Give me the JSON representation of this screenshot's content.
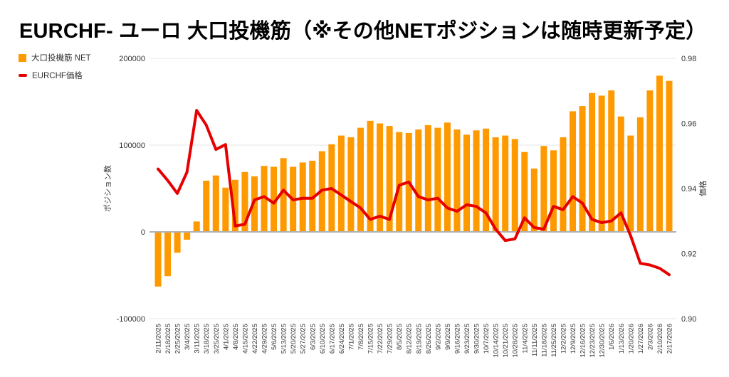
{
  "title": "EURCHF- ユーロ 大口投機筋（※その他NETポジションは随時更新予定）",
  "background": "#ffffff",
  "legend": [
    {
      "label": "大口投機筋 NET",
      "type": "bar",
      "color": "#ff9900"
    },
    {
      "label": "EURCHF価格",
      "type": "line",
      "color": "#e60000"
    }
  ],
  "chart_data": {
    "type": "combo-bar-line",
    "title": "EURCHF- ユーロ 大口投機筋（※その他NETポジションは随時更新予定）",
    "grid": true,
    "legend_position": "top-left",
    "categories": [
      "2/11/2025",
      "2/18/2025",
      "2/25/2025",
      "3/4/2025",
      "3/11/2025",
      "3/18/2025",
      "3/25/2025",
      "4/1/2025",
      "4/8/2025",
      "4/15/2025",
      "4/22/2025",
      "4/29/2025",
      "5/6/2025",
      "5/13/2025",
      "5/20/2025",
      "5/27/2025",
      "6/3/2025",
      "6/10/2025",
      "6/17/2025",
      "6/24/2025",
      "7/1/2025",
      "7/8/2025",
      "7/15/2025",
      "7/22/2025",
      "7/29/2025",
      "8/5/2025",
      "8/12/2025",
      "8/19/2025",
      "8/26/2025",
      "9/2/2025",
      "9/9/2025",
      "9/16/2025",
      "9/23/2025",
      "9/30/2025",
      "10/7/2025",
      "10/14/2025",
      "10/21/2025",
      "10/28/2025",
      "11/4/2025",
      "11/11/2025",
      "11/18/2025",
      "11/25/2025",
      "12/2/2025",
      "12/9/2025",
      "12/16/2025",
      "12/23/2025",
      "12/30/2025",
      "1/6/2026",
      "1/13/2026",
      "1/20/2026",
      "1/27/2026",
      "2/3/2026",
      "2/10/2026",
      "2/17/2026"
    ],
    "series": [
      {
        "name": "大口投機筋 NET",
        "type": "bar",
        "axis": "left",
        "color": "#ff9900",
        "values": [
          -63000,
          -51000,
          -24000,
          -9000,
          12000,
          59000,
          65000,
          51000,
          60000,
          69000,
          64000,
          76000,
          75000,
          85000,
          75000,
          80000,
          82000,
          93000,
          101000,
          111000,
          109000,
          120000,
          128000,
          125000,
          122000,
          115000,
          114000,
          118000,
          123000,
          120000,
          126000,
          118000,
          112000,
          117000,
          119000,
          109000,
          111000,
          107000,
          92000,
          73000,
          99000,
          94000,
          109000,
          139000,
          145000,
          160000,
          157000,
          163000,
          133000,
          111000,
          132000,
          163000,
          180000,
          174000
        ]
      },
      {
        "name": "EURCHF価格",
        "type": "line",
        "axis": "right",
        "color": "#e60000",
        "values": [
          0.946,
          0.9425,
          0.9385,
          0.945,
          0.964,
          0.9595,
          0.952,
          0.9535,
          0.9285,
          0.929,
          0.9365,
          0.9375,
          0.9355,
          0.9395,
          0.9365,
          0.937,
          0.937,
          0.9395,
          0.94,
          0.938,
          0.936,
          0.934,
          0.9305,
          0.9315,
          0.9305,
          0.941,
          0.942,
          0.9375,
          0.9365,
          0.937,
          0.934,
          0.933,
          0.935,
          0.9345,
          0.9325,
          0.9275,
          0.924,
          0.9245,
          0.931,
          0.928,
          0.9275,
          0.9345,
          0.9335,
          0.9375,
          0.9355,
          0.9305,
          0.9295,
          0.93,
          0.9325,
          0.9255,
          0.917,
          0.9165,
          0.9155,
          0.9135
        ]
      }
    ],
    "left_axis": {
      "title": "ポジション数",
      "range": [
        -100000,
        200000
      ],
      "ticks": [
        200000,
        100000,
        0,
        -100000
      ],
      "tick_labels": [
        "200000",
        "100000",
        "0",
        "-100000"
      ]
    },
    "right_axis": {
      "title": "価格",
      "range": [
        0.9,
        0.98
      ],
      "ticks": [
        0.98,
        0.96,
        0.94,
        0.92,
        0.9
      ],
      "tick_labels": [
        "0.98",
        "0.96",
        "0.94",
        "0.92",
        "0.90"
      ]
    },
    "colors": {
      "bar": "#ff9900",
      "line": "#e60000",
      "grid": "#e6e6e6",
      "zero_line": "#b0b0b0",
      "text": "#333333"
    }
  }
}
